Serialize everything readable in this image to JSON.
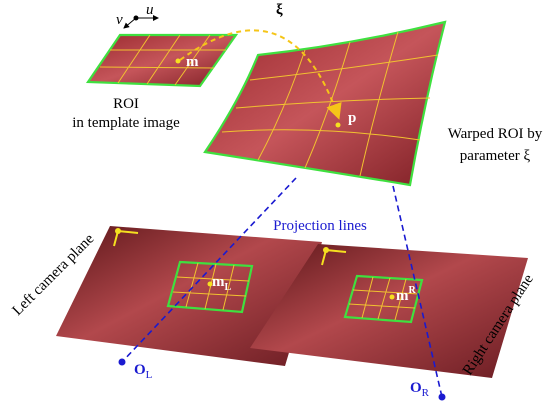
{
  "template": {
    "axis_v": "v",
    "axis_u": "u",
    "point": "m",
    "caption": [
      "ROI",
      "in template image"
    ]
  },
  "warp": {
    "symbol": "ξ",
    "point": "p",
    "caption": [
      "Warped ROI by",
      "parameter ξ"
    ]
  },
  "projection_label": "Projection lines",
  "left": {
    "plane_label": "Left camera plane",
    "point": "m",
    "point_sub": "L",
    "origin": "O",
    "origin_sub": "L"
  },
  "right": {
    "plane_label": "Right camera plane",
    "point": "m",
    "point_sup": "R",
    "origin": "O",
    "origin_sub": "R"
  }
}
